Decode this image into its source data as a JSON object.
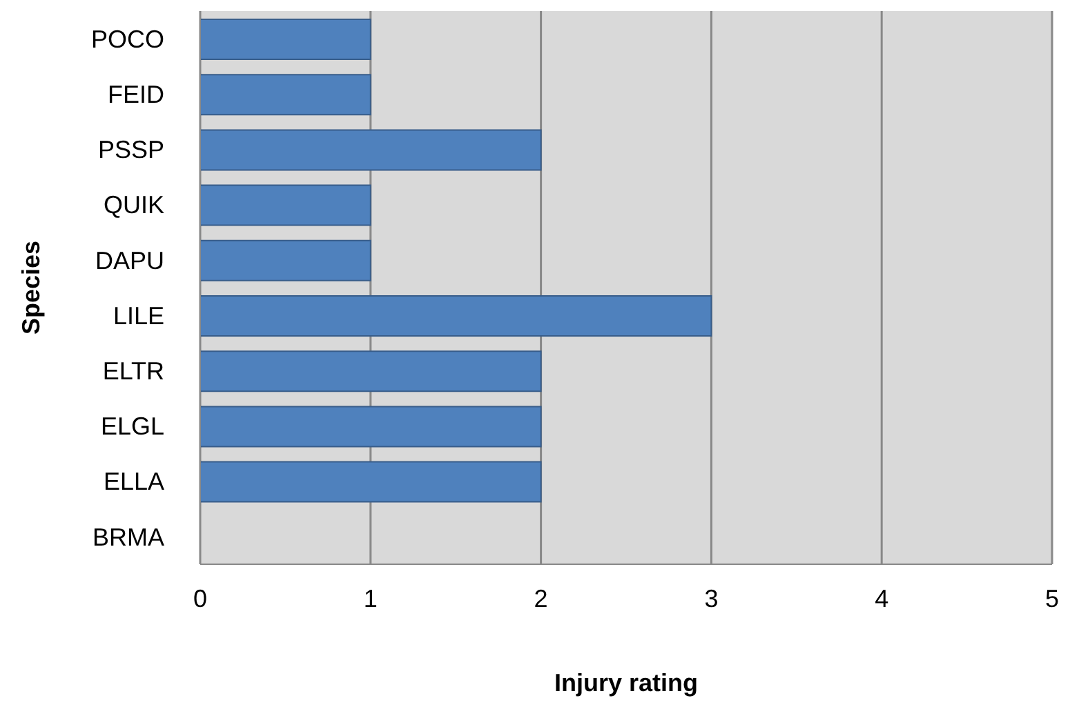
{
  "chart_data": {
    "type": "bar",
    "orientation": "horizontal",
    "xlabel": "Injury rating",
    "ylabel": "Species",
    "categories": [
      "POCO",
      "FEID",
      "PSSP",
      "QUIK",
      "DAPU",
      "LILE",
      "ELTR",
      "ELGL",
      "ELLA",
      "BRMA"
    ],
    "values": [
      1,
      1,
      2,
      1,
      1,
      3,
      2,
      2,
      2,
      0
    ],
    "color": "#4f81bd",
    "xlim": [
      0,
      5
    ],
    "xticks": [
      0,
      1,
      2,
      3,
      4,
      5
    ],
    "grid": "x"
  }
}
